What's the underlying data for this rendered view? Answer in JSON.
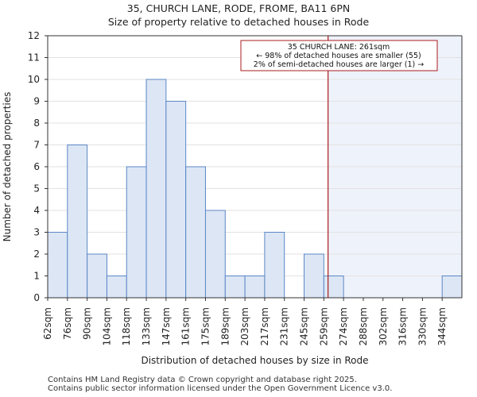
{
  "title_line1": "35, CHURCH LANE, RODE, FROME, BA11 6PN",
  "title_line2": "Size of property relative to detached houses in Rode",
  "footer_line1": "Contains HM Land Registry data © Crown copyright and database right 2025.",
  "footer_line2": "Contains public sector information licensed under the Open Government Licence v3.0.",
  "chart_data": {
    "type": "bar",
    "xlabel": "Distribution of detached houses by size in Rode",
    "ylabel": "Number of detached properties",
    "ylim": [
      0,
      12
    ],
    "yticks": [
      0,
      1,
      2,
      3,
      4,
      5,
      6,
      7,
      8,
      9,
      10,
      11,
      12
    ],
    "categories": [
      "62sqm",
      "76sqm",
      "90sqm",
      "104sqm",
      "118sqm",
      "133sqm",
      "147sqm",
      "161sqm",
      "175sqm",
      "189sqm",
      "203sqm",
      "217sqm",
      "231sqm",
      "245sqm",
      "259sqm",
      "274sqm",
      "288sqm",
      "302sqm",
      "316sqm",
      "330sqm",
      "344sqm"
    ],
    "values": [
      3,
      7,
      2,
      1,
      6,
      10,
      9,
      6,
      4,
      1,
      1,
      3,
      0,
      2,
      1,
      0,
      0,
      0,
      0,
      0,
      1
    ],
    "bar_color": "#dce6f5",
    "bar_edge_color": "#5b87c5",
    "highlight_color": "#eef2fb",
    "marker_line_color": "#aa1c1c",
    "marker_value": 261,
    "annotation": {
      "line1": "35 CHURCH LANE: 261sqm",
      "line2": "← 98% of detached houses are smaller (55)",
      "line3": "2% of semi-detached houses are larger (1) →"
    }
  }
}
